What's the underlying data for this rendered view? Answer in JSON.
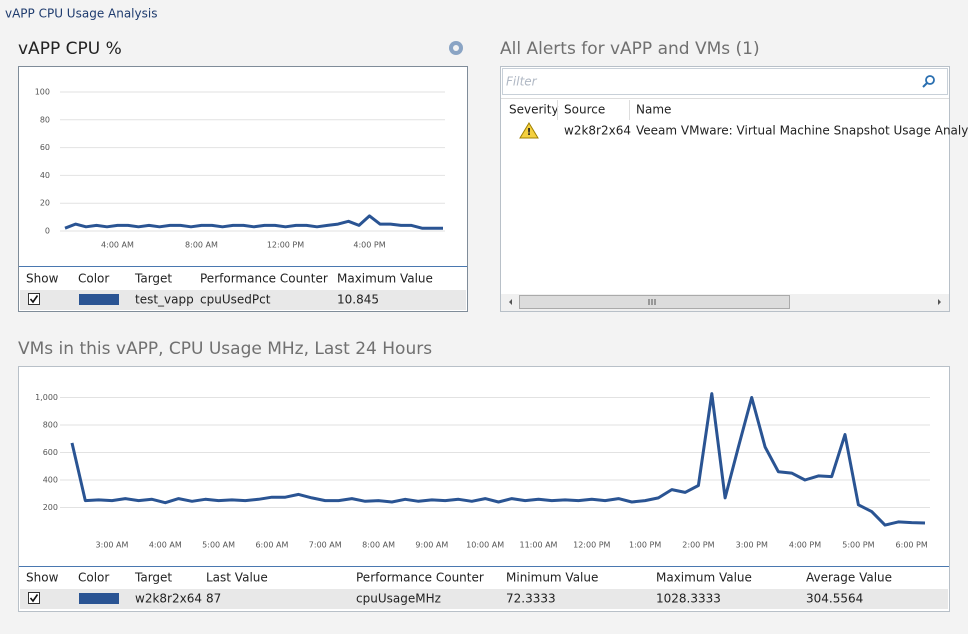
{
  "header": {
    "title": "vAPP CPU Usage Analysis"
  },
  "chart_data": [
    {
      "type": "line",
      "title": "vAPP CPU %",
      "categories": [
        null,
        null,
        null,
        null,
        null,
        "4:00 AM",
        null,
        null,
        null,
        null,
        null,
        null,
        null,
        "8:00 AM",
        null,
        null,
        null,
        null,
        null,
        null,
        null,
        "12:00 PM",
        null,
        null,
        null,
        null,
        null,
        null,
        null,
        "4:00 PM",
        null,
        null,
        null,
        null,
        null,
        null,
        null
      ],
      "series": [
        {
          "name": "test_vapp",
          "color": "#2a5493",
          "values": [
            2,
            5,
            3,
            4,
            3,
            4,
            4,
            3,
            4,
            3,
            4,
            4,
            3,
            4,
            4,
            3,
            4,
            4,
            3,
            4,
            4,
            3,
            4,
            4,
            3,
            4,
            5,
            7,
            4,
            10.845,
            5,
            5,
            4,
            4,
            2,
            2,
            2
          ]
        }
      ],
      "ylim": [
        0,
        100
      ],
      "yticks": [
        0,
        20,
        40,
        60,
        80,
        100
      ],
      "grid": true
    },
    {
      "type": "line",
      "title": "VMs in this vAPP, CPU Usage MHz, Last 24 Hours",
      "categories": [
        null,
        null,
        null,
        "3:00 AM",
        null,
        null,
        null,
        "4:00 AM",
        null,
        null,
        null,
        "5:00 AM",
        null,
        null,
        null,
        "6:00 AM",
        null,
        null,
        null,
        "7:00 AM",
        null,
        null,
        null,
        "8:00 AM",
        null,
        null,
        null,
        "9:00 AM",
        null,
        null,
        null,
        "10:00 AM",
        null,
        null,
        null,
        "11:00 AM",
        null,
        null,
        null,
        "12:00 PM",
        null,
        null,
        null,
        "1:00 PM",
        null,
        null,
        null,
        "2:00 PM",
        null,
        null,
        null,
        "3:00 PM",
        null,
        null,
        null,
        "4:00 PM",
        null,
        null,
        null,
        "5:00 PM",
        null,
        null,
        null,
        "6:00 PM",
        null
      ],
      "series": [
        {
          "name": "w2k8r2x64",
          "color": "#2a5493",
          "values": [
            670,
            250,
            255,
            250,
            265,
            250,
            260,
            235,
            265,
            245,
            260,
            250,
            255,
            250,
            260,
            275,
            275,
            295,
            270,
            250,
            250,
            265,
            245,
            250,
            240,
            260,
            245,
            255,
            250,
            260,
            245,
            265,
            240,
            265,
            250,
            260,
            250,
            255,
            250,
            260,
            250,
            265,
            240,
            250,
            270,
            330,
            310,
            360,
            1028.3333,
            270,
            640,
            1000,
            640,
            460,
            450,
            400,
            430,
            425,
            730,
            220,
            170,
            72.3333,
            95,
            90,
            87
          ]
        }
      ],
      "ylim": [
        0,
        1200
      ],
      "yticks": [
        200,
        400,
        600,
        800,
        {
          "value": 1000,
          "label": "1,000"
        }
      ],
      "grid": true
    }
  ],
  "tables": [
    {
      "columns": [
        "Show",
        "Color",
        "Target",
        "Performance Counter",
        "Maximum Value"
      ],
      "row": {
        "counter": "cpuUsedPct",
        "maximum": "10.845"
      }
    },
    {
      "columns": [
        "Show",
        "Color",
        "Target",
        "Last Value",
        "Performance Counter",
        "Minimum Value",
        "Maximum Value",
        "Average Value"
      ],
      "row": {
        "last": "87",
        "counter": "cpuUsageMHz",
        "minimum": "72.3333",
        "maximum": "1028.3333",
        "average": "304.5564"
      }
    }
  ],
  "alerts": {
    "title": "All Alerts for vAPP and VMs (1)",
    "filter": "Filter",
    "columns": [
      "Severity",
      "Source",
      "Name"
    ],
    "rows": [
      {
        "source": "w2k8r2x64",
        "name": "Veeam VMware: Virtual Machine Snapshot Usage Analysis"
      }
    ]
  }
}
